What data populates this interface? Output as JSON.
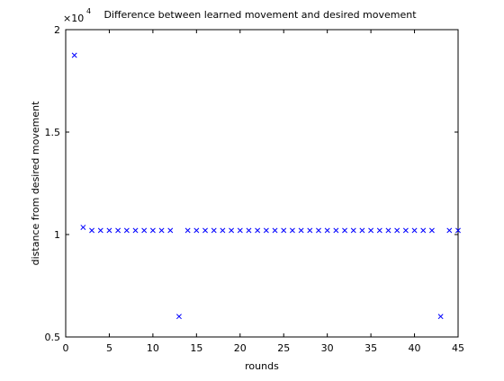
{
  "chart_data": {
    "type": "scatter",
    "title": "Difference between learned movement and desired movement",
    "xlabel": "rounds",
    "ylabel": "distance from desired movement",
    "y_exponent_label": {
      "base": "×10",
      "power": "4"
    },
    "xlim": [
      0,
      45
    ],
    "ylim": [
      0.5,
      2
    ],
    "xticks": [
      0,
      5,
      10,
      15,
      20,
      25,
      30,
      35,
      40,
      45
    ],
    "yticks": [
      0.5,
      1,
      1.5,
      2
    ],
    "ytick_labels": [
      "0.5",
      "1",
      "1.5",
      "2"
    ],
    "grid": false,
    "marker": "x",
    "marker_color": "#0000ff",
    "series": [
      {
        "x": [
          1,
          2,
          3,
          4,
          5,
          6,
          7,
          8,
          9,
          10,
          11,
          12,
          13,
          14,
          15,
          16,
          17,
          18,
          19,
          20,
          21,
          22,
          23,
          24,
          25,
          26,
          27,
          28,
          29,
          30,
          31,
          32,
          33,
          34,
          35,
          36,
          37,
          38,
          39,
          40,
          41,
          42,
          43,
          44,
          45
        ],
        "y": [
          1.875,
          1.035,
          1.02,
          1.02,
          1.02,
          1.02,
          1.02,
          1.02,
          1.02,
          1.02,
          1.02,
          1.02,
          0.6,
          1.02,
          1.02,
          1.02,
          1.02,
          1.02,
          1.02,
          1.02,
          1.02,
          1.02,
          1.02,
          1.02,
          1.02,
          1.02,
          1.02,
          1.02,
          1.02,
          1.02,
          1.02,
          1.02,
          1.02,
          1.02,
          1.02,
          1.02,
          1.02,
          1.02,
          1.02,
          1.02,
          1.02,
          1.02,
          0.6,
          1.02,
          1.02
        ]
      }
    ]
  }
}
